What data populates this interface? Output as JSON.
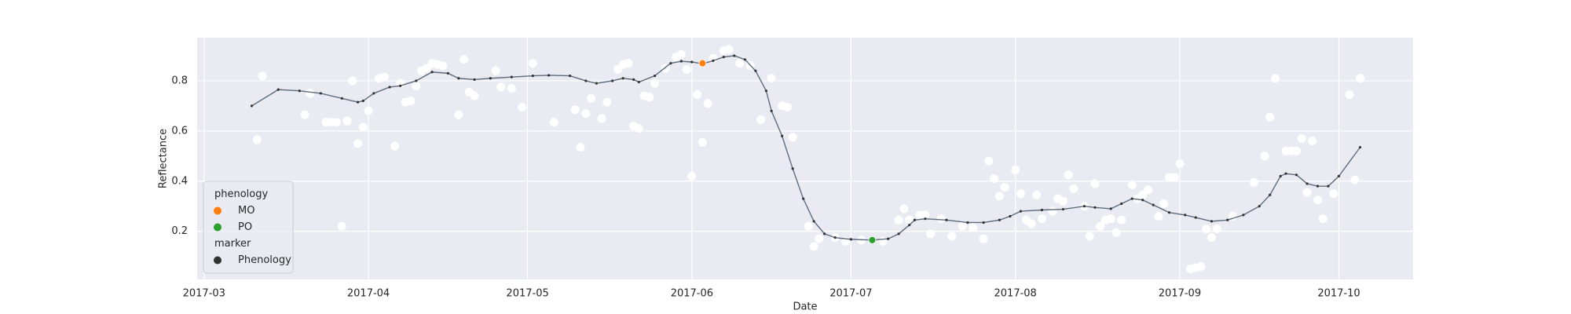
{
  "chart_data": {
    "type": "scatter",
    "xlabel": "Date",
    "ylabel": "Reflectance",
    "xlim": [
      58.7,
      288
    ],
    "ylim": [
      0.008,
      0.972
    ],
    "xticks": [
      {
        "value": 60,
        "label": "2017-03"
      },
      {
        "value": 91,
        "label": "2017-04"
      },
      {
        "value": 121,
        "label": "2017-05"
      },
      {
        "value": 152,
        "label": "2017-06"
      },
      {
        "value": 182,
        "label": "2017-07"
      },
      {
        "value": 213,
        "label": "2017-08"
      },
      {
        "value": 244,
        "label": "2017-09"
      },
      {
        "value": 274,
        "label": "2017-10"
      }
    ],
    "yticks": [
      0.2,
      0.4,
      0.6,
      0.8
    ],
    "grid": true,
    "legend_corner": "lower left",
    "legend_title": "phenology",
    "marker_legend": {
      "title": "marker",
      "entries": [
        "Phenology"
      ],
      "color": "#333333"
    },
    "series": [
      {
        "style": "scatter",
        "color": "#ffffff",
        "x": [
          70,
          71,
          79,
          80,
          83,
          84,
          85,
          86,
          87,
          88,
          89,
          90,
          91,
          93,
          94,
          96,
          97,
          98,
          99,
          100,
          101,
          102,
          103,
          104,
          105,
          108,
          109,
          110,
          111,
          115,
          116,
          118,
          120,
          122,
          126,
          130,
          131,
          132,
          133,
          135,
          136,
          138,
          139,
          140,
          141,
          142,
          143,
          144,
          145,
          147,
          149,
          150,
          151,
          152,
          153,
          154,
          155,
          156,
          158,
          159,
          161,
          163,
          165,
          167,
          169,
          170,
          171,
          174,
          175,
          176,
          179,
          181,
          184,
          188,
          191,
          192,
          193,
          195,
          196,
          197,
          199,
          201,
          203,
          205,
          207,
          208,
          209,
          210,
          211,
          213,
          214,
          215,
          216,
          217,
          218,
          220,
          221,
          222,
          223,
          224,
          226,
          227,
          228,
          229,
          230,
          231,
          232,
          233,
          235,
          236,
          237,
          238,
          240,
          241,
          242,
          243,
          244,
          246,
          247,
          248,
          249,
          250,
          251,
          254,
          258,
          260,
          261,
          262,
          264,
          265,
          266,
          267,
          268,
          269,
          270,
          271,
          273,
          276,
          277,
          278
        ],
        "values": [
          0.565,
          0.82,
          0.665,
          0.75,
          0.635,
          0.635,
          0.635,
          0.22,
          0.64,
          0.8,
          0.55,
          0.615,
          0.68,
          0.81,
          0.815,
          0.54,
          0.79,
          0.715,
          0.72,
          0.78,
          0.84,
          0.85,
          0.87,
          0.865,
          0.86,
          0.665,
          0.885,
          0.755,
          0.74,
          0.84,
          0.775,
          0.77,
          0.695,
          0.87,
          0.635,
          0.685,
          0.535,
          0.67,
          0.73,
          0.65,
          0.715,
          0.845,
          0.865,
          0.87,
          0.62,
          0.61,
          0.74,
          0.735,
          0.79,
          0.85,
          0.895,
          0.905,
          0.845,
          0.42,
          0.745,
          0.555,
          0.71,
          0.89,
          0.92,
          0.925,
          0.87,
          0.86,
          0.645,
          0.81,
          0.7,
          0.695,
          0.575,
          0.22,
          0.14,
          0.17,
          0.175,
          0.16,
          0.165,
          0.16,
          0.245,
          0.29,
          0.245,
          0.265,
          0.265,
          0.19,
          0.25,
          0.18,
          0.22,
          0.215,
          0.17,
          0.48,
          0.41,
          0.34,
          0.375,
          0.445,
          0.35,
          0.245,
          0.23,
          0.345,
          0.25,
          0.28,
          0.33,
          0.32,
          0.425,
          0.37,
          0.3,
          0.18,
          0.39,
          0.22,
          0.245,
          0.25,
          0.195,
          0.245,
          0.385,
          0.33,
          0.345,
          0.365,
          0.26,
          0.31,
          0.415,
          0.415,
          0.47,
          0.05,
          0.055,
          0.06,
          0.21,
          0.175,
          0.21,
          0.26,
          0.395,
          0.5,
          0.655,
          0.81,
          0.52,
          0.52,
          0.52,
          0.57,
          0.355,
          0.56,
          0.325,
          0.25,
          0.35,
          0.745,
          0.405,
          0.81
        ]
      },
      {
        "style": "line",
        "color": "#5d6d7e",
        "x": [
          69,
          74,
          78,
          82,
          86,
          89,
          90,
          92,
          95,
          97,
          100,
          103,
          106,
          108,
          111,
          114,
          118,
          122,
          125,
          129,
          132,
          134,
          137,
          139,
          141,
          142,
          145,
          148,
          150,
          152,
          154,
          156,
          158,
          160,
          162,
          164,
          166,
          167,
          169,
          171,
          173,
          175,
          177,
          179,
          182,
          186,
          189,
          191,
          193,
          194,
          196,
          200,
          204,
          207,
          210,
          212,
          214,
          218,
          222,
          226,
          228,
          231,
          233,
          235,
          237,
          239,
          242,
          245,
          247,
          250,
          253,
          256,
          259,
          261,
          263,
          264,
          266,
          268,
          270,
          272,
          274,
          278
        ],
        "values": [
          0.7,
          0.765,
          0.76,
          0.75,
          0.73,
          0.715,
          0.72,
          0.75,
          0.775,
          0.78,
          0.8,
          0.835,
          0.83,
          0.81,
          0.805,
          0.81,
          0.815,
          0.82,
          0.822,
          0.82,
          0.8,
          0.79,
          0.8,
          0.81,
          0.805,
          0.795,
          0.82,
          0.87,
          0.878,
          0.875,
          0.868,
          0.88,
          0.895,
          0.9,
          0.885,
          0.84,
          0.76,
          0.68,
          0.58,
          0.45,
          0.33,
          0.24,
          0.19,
          0.175,
          0.168,
          0.165,
          0.17,
          0.19,
          0.225,
          0.245,
          0.25,
          0.245,
          0.235,
          0.235,
          0.245,
          0.26,
          0.28,
          0.285,
          0.288,
          0.3,
          0.295,
          0.29,
          0.31,
          0.33,
          0.325,
          0.305,
          0.275,
          0.265,
          0.255,
          0.24,
          0.245,
          0.265,
          0.3,
          0.345,
          0.42,
          0.43,
          0.425,
          0.39,
          0.38,
          0.38,
          0.42,
          0.535
        ]
      },
      {
        "name": "MO",
        "style": "point",
        "color": "#ff7f0e",
        "x": [
          154
        ],
        "values": [
          0.87
        ]
      },
      {
        "name": "PO",
        "style": "point",
        "color": "#2ca02c",
        "x": [
          186
        ],
        "values": [
          0.165
        ]
      }
    ]
  }
}
